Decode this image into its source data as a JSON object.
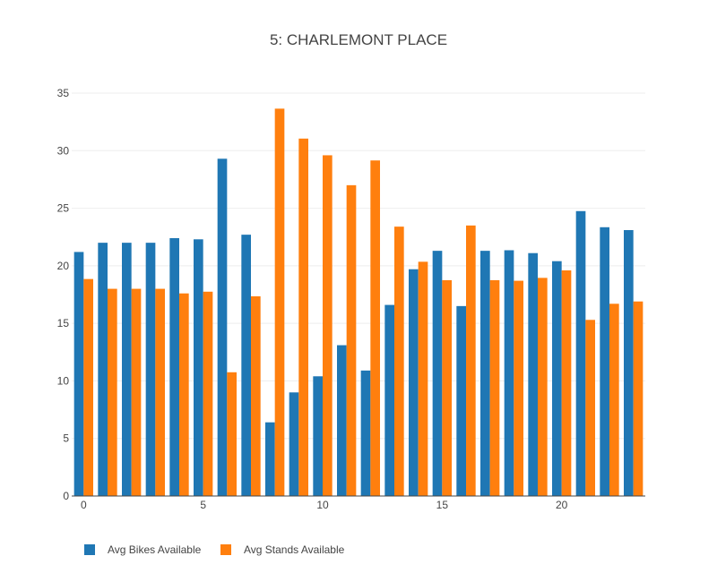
{
  "chart_data": {
    "type": "bar",
    "title": "5: CHARLEMONT PLACE",
    "xlabel": "",
    "ylabel": "",
    "x": [
      0,
      1,
      2,
      3,
      4,
      5,
      6,
      7,
      8,
      9,
      10,
      11,
      12,
      13,
      14,
      15,
      16,
      17,
      18,
      19,
      20,
      21,
      22,
      23
    ],
    "x_ticks": [
      0,
      5,
      10,
      15,
      20
    ],
    "x_tick_labels": [
      "0",
      "5",
      "10",
      "15",
      "20"
    ],
    "ylim": [
      0,
      35
    ],
    "y_ticks": [
      0,
      5,
      10,
      15,
      20,
      25,
      30,
      35
    ],
    "y_tick_labels": [
      "0",
      "5",
      "10",
      "15",
      "20",
      "25",
      "30",
      "35"
    ],
    "grid": true,
    "legend_position": "bottom-left",
    "series": [
      {
        "name": "Avg Bikes Available",
        "color": "#1f77b4",
        "values": [
          21.2,
          22.0,
          22.0,
          22.0,
          22.4,
          22.3,
          29.3,
          22.7,
          6.4,
          9.0,
          10.4,
          13.1,
          10.9,
          16.6,
          19.7,
          21.3,
          16.5,
          21.3,
          21.35,
          21.1,
          20.4,
          24.75,
          23.35,
          23.1
        ]
      },
      {
        "name": "Avg Stands Available",
        "color": "#ff7f0e",
        "values": [
          18.85,
          18.0,
          18.0,
          18.0,
          17.6,
          17.75,
          10.75,
          17.35,
          33.65,
          31.05,
          29.6,
          27.0,
          29.15,
          23.4,
          20.35,
          18.75,
          23.5,
          18.75,
          18.7,
          18.95,
          19.6,
          15.3,
          16.7,
          16.9
        ]
      }
    ]
  }
}
